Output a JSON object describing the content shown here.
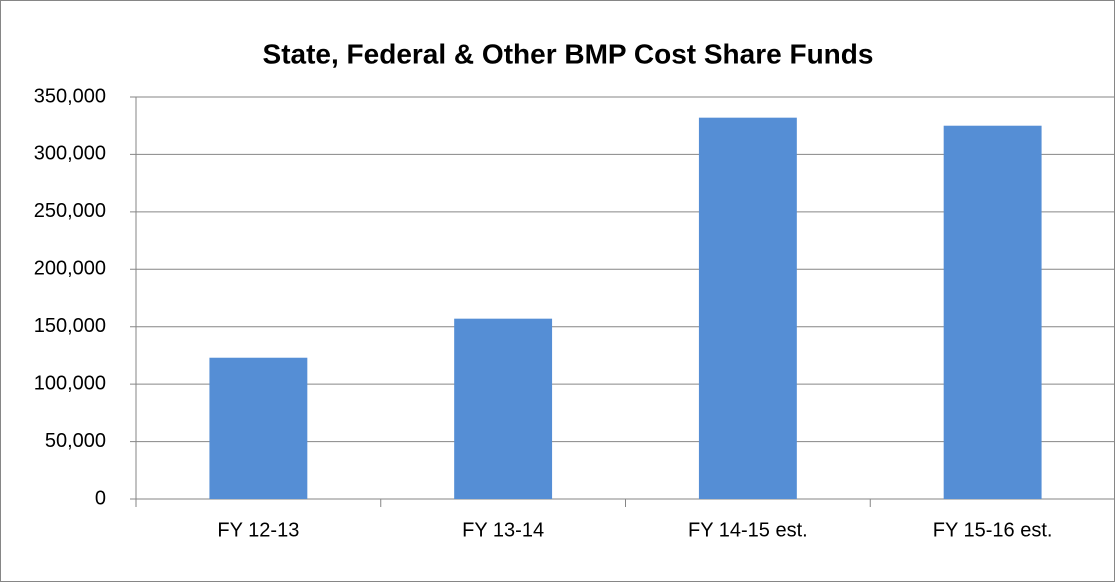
{
  "chart_data": {
    "type": "bar",
    "title": "State, Federal & Other BMP Cost Share Funds",
    "categories": [
      "FY 12-13",
      "FY 13-14",
      "FY 14-15 est.",
      "FY 15-16 est."
    ],
    "values": [
      123000,
      157000,
      332000,
      325000
    ],
    "color": "#558ed5",
    "ylim": [
      0,
      350000
    ],
    "yticks": [
      0,
      {
        "value": 50000,
        "label": "50,000"
      },
      {
        "value": 100000,
        "label": "100,000"
      },
      {
        "value": 150000,
        "label": "150,000"
      },
      {
        "value": 200000,
        "label": "200,000"
      },
      {
        "value": 250000,
        "label": "250,000"
      },
      {
        "value": 300000,
        "label": "300,000"
      },
      {
        "value": 350000,
        "label": "350,000"
      }
    ],
    "grid": true
  }
}
